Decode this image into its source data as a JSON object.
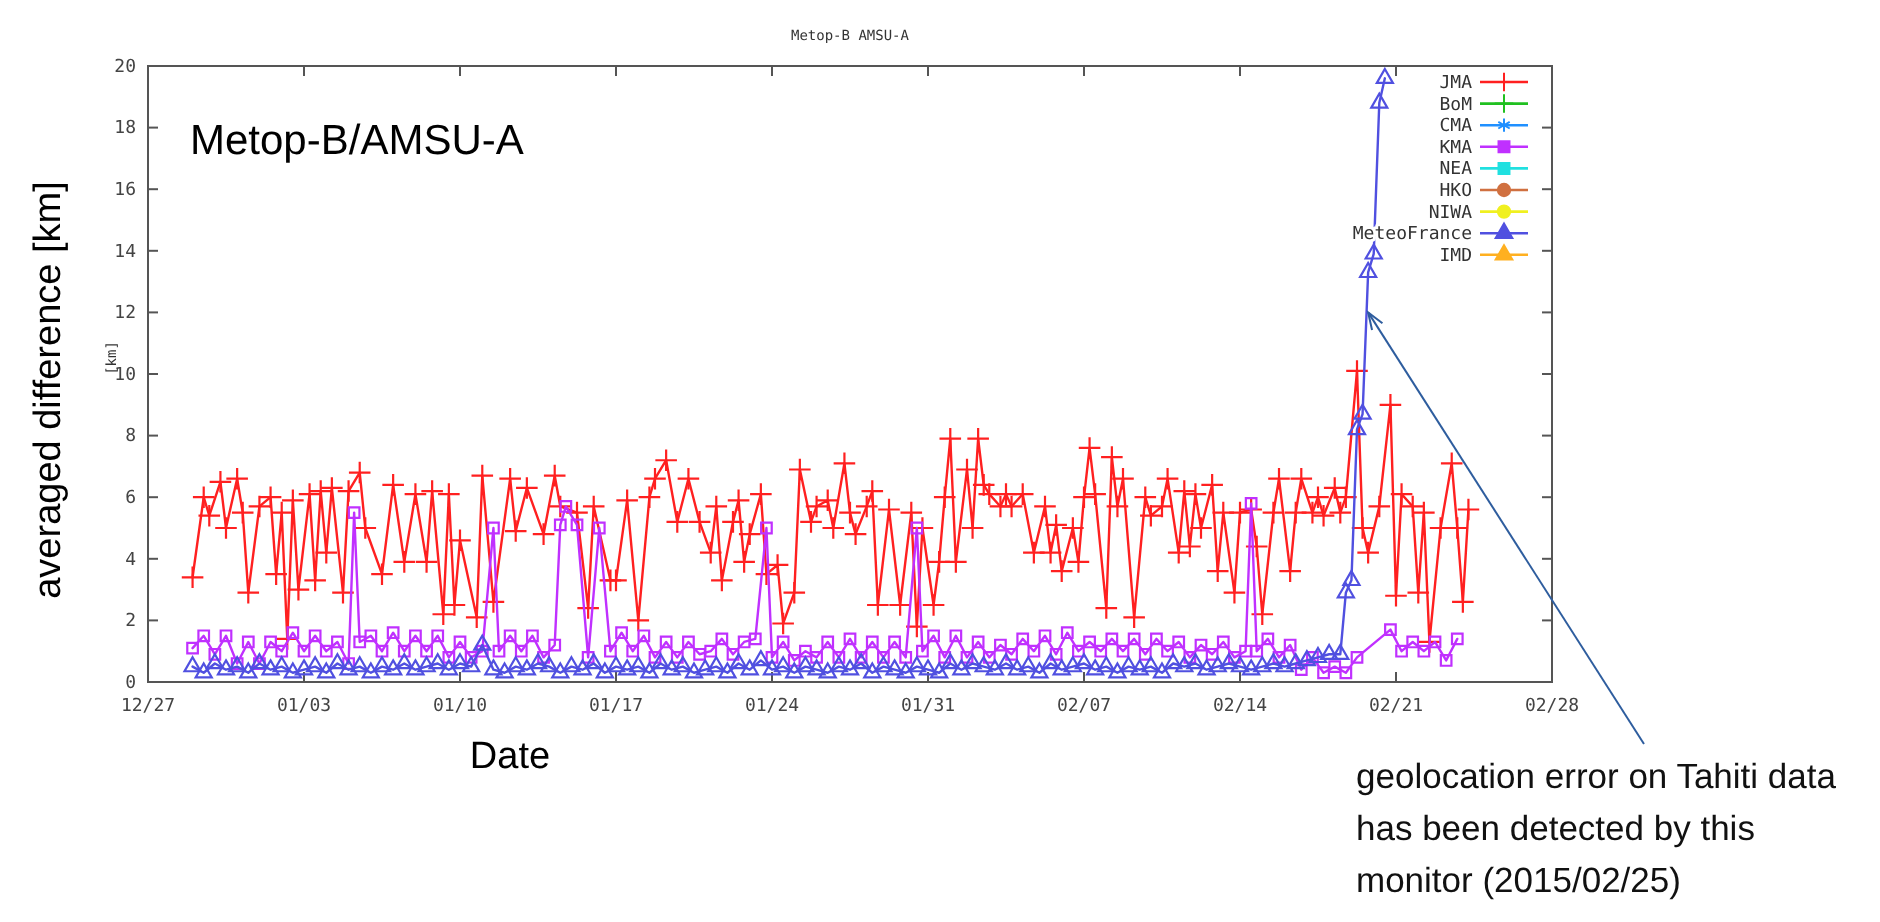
{
  "chart_data": {
    "type": "line",
    "title": "Metop-B AMSU-A",
    "xlabel": "Date",
    "ylabel": "averaged difference [km]",
    "annotations": [
      "Metop-B/AMSU-A",
      "[km]",
      {
        "text": "geolocation error on Tahiti data has been detected by this monitor (2015/02/25)",
        "x": "2015-02-19T18:00",
        "y": 12
      }
    ],
    "xlim": [
      "2014-12-27",
      "2015-02-28"
    ],
    "xticks": [
      {
        "value": "2014-12-27",
        "label": "12/27"
      },
      {
        "value": "2015-01-03",
        "label": "01/03"
      },
      {
        "value": "2015-01-10",
        "label": "01/10"
      },
      {
        "value": "2015-01-17",
        "label": "01/17"
      },
      {
        "value": "2015-01-24",
        "label": "01/24"
      },
      {
        "value": "2015-01-31",
        "label": "01/31"
      },
      {
        "value": "2015-02-07",
        "label": "02/07"
      },
      {
        "value": "2015-02-14",
        "label": "02/14"
      },
      {
        "value": "2015-02-21",
        "label": "02/21"
      },
      {
        "value": "2015-02-28",
        "label": "02/28"
      }
    ],
    "ylim": [
      0,
      20
    ],
    "yticks": [
      0,
      2,
      4,
      6,
      8,
      10,
      12,
      14,
      16,
      18,
      20
    ],
    "grid": false,
    "legend": "top right",
    "series": [
      {
        "name": "JMA",
        "color": "#ff2020",
        "marker": "cross",
        "x": [
          "2014-12-29T00:00",
          "2014-12-29T12:00",
          "2014-12-29T18:00",
          "2014-12-30T06:00",
          "2014-12-30T12:00",
          "2014-12-31T00:00",
          "2014-12-31T06:00",
          "2014-12-31T12:00",
          "2015-01-01T00:00",
          "2015-01-01T12:00",
          "2015-01-01T18:00",
          "2015-01-02T00:00",
          "2015-01-02T06:00",
          "2015-01-02T12:00",
          "2015-01-02T18:00",
          "2015-01-03T06:00",
          "2015-01-03T12:00",
          "2015-01-03T18:00",
          "2015-01-04T00:00",
          "2015-01-04T06:00",
          "2015-01-04T18:00",
          "2015-01-05T00:00",
          "2015-01-05T12:00",
          "2015-01-05T18:00",
          "2015-01-06T12:00",
          "2015-01-07T00:00",
          "2015-01-07T12:00",
          "2015-01-08T00:00",
          "2015-01-08T12:00",
          "2015-01-08T18:00",
          "2015-01-09T06:00",
          "2015-01-09T12:00",
          "2015-01-09T18:00",
          "2015-01-10T00:00",
          "2015-01-10T18:00",
          "2015-01-11T00:00",
          "2015-01-11T12:00",
          "2015-01-12T06:00",
          "2015-01-12T12:00",
          "2015-01-13T00:00",
          "2015-01-13T18:00",
          "2015-01-14T06:00",
          "2015-01-14T12:00",
          "2015-01-15T06:00",
          "2015-01-15T18:00",
          "2015-01-16T00:00",
          "2015-01-16T18:00",
          "2015-01-17T00:00",
          "2015-01-17T12:00",
          "2015-01-18T00:00",
          "2015-01-18T12:00",
          "2015-01-18T18:00",
          "2015-01-19T06:00",
          "2015-01-19T18:00",
          "2015-01-20T06:00",
          "2015-01-20T18:00",
          "2015-01-21T06:00",
          "2015-01-21T12:00",
          "2015-01-21T18:00",
          "2015-01-22T06:00",
          "2015-01-22T12:00",
          "2015-01-22T18:00",
          "2015-01-23T00:00",
          "2015-01-23T12:00",
          "2015-01-23T18:00",
          "2015-01-24T06:00",
          "2015-01-24T12:00",
          "2015-01-25T00:00",
          "2015-01-25T06:00",
          "2015-01-25T18:00",
          "2015-01-26T00:00",
          "2015-01-26T12:00",
          "2015-01-26T18:00",
          "2015-01-27T06:00",
          "2015-01-27T12:00",
          "2015-01-27T18:00",
          "2015-01-28T06:00",
          "2015-01-28T12:00",
          "2015-01-28T18:00",
          "2015-01-29T06:00",
          "2015-01-29T18:00",
          "2015-01-30T06:00",
          "2015-01-30T12:00",
          "2015-01-30T18:00",
          "2015-01-31T06:00",
          "2015-01-31T12:00",
          "2015-01-31T18:00",
          "2015-02-01T00:00",
          "2015-02-01T06:00",
          "2015-02-01T18:00",
          "2015-02-02T00:00",
          "2015-02-02T06:00",
          "2015-02-02T12:00",
          "2015-02-02T18:00",
          "2015-02-03T06:00",
          "2015-02-03T12:00",
          "2015-02-03T18:00",
          "2015-02-04T06:00",
          "2015-02-04T18:00",
          "2015-02-05T06:00",
          "2015-02-05T12:00",
          "2015-02-05T18:00",
          "2015-02-06T00:00",
          "2015-02-06T12:00",
          "2015-02-06T18:00",
          "2015-02-07T00:00",
          "2015-02-07T06:00",
          "2015-02-07T12:00",
          "2015-02-08T00:00",
          "2015-02-08T06:00",
          "2015-02-08T12:00",
          "2015-02-08T18:00",
          "2015-02-09T06:00",
          "2015-02-09T18:00",
          "2015-02-10T00:00",
          "2015-02-10T12:00",
          "2015-02-10T18:00",
          "2015-02-11T06:00",
          "2015-02-11T12:00",
          "2015-02-11T18:00",
          "2015-02-12T00:00",
          "2015-02-12T06:00",
          "2015-02-12T18:00",
          "2015-02-13T00:00",
          "2015-02-13T06:00",
          "2015-02-13T18:00",
          "2015-02-14T00:00",
          "2015-02-14T12:00",
          "2015-02-14T18:00",
          "2015-02-15T00:00",
          "2015-02-15T12:00",
          "2015-02-15T18:00",
          "2015-02-16T06:00",
          "2015-02-16T12:00",
          "2015-02-16T18:00",
          "2015-02-17T06:00",
          "2015-02-17T12:00",
          "2015-02-17T18:00",
          "2015-02-18T06:00",
          "2015-02-18T12:00",
          "2015-02-18T18:00",
          "2015-02-19T06:00",
          "2015-02-19T12:00",
          "2015-02-19T18:00",
          "2015-02-20T06:00",
          "2015-02-20T18:00",
          "2015-02-21T00:00",
          "2015-02-21T06:00",
          "2015-02-21T18:00",
          "2015-02-22T00:00",
          "2015-02-22T06:00",
          "2015-02-22T12:00",
          "2015-02-23T00:00",
          "2015-02-23T12:00",
          "2015-02-23T18:00",
          "2015-02-24T00:00",
          "2015-02-24T06:00"
        ],
        "values": [
          3.4,
          6.0,
          5.4,
          6.5,
          5.0,
          6.6,
          5.5,
          2.9,
          5.7,
          6.0,
          3.5,
          5.5,
          1.4,
          5.9,
          3.0,
          6.1,
          3.3,
          6.2,
          4.2,
          6.3,
          2.9,
          6.2,
          6.8,
          5.0,
          3.5,
          6.4,
          3.9,
          6.1,
          3.9,
          6.2,
          2.2,
          6.1,
          2.5,
          4.6,
          2.1,
          6.7,
          2.6,
          6.6,
          4.9,
          6.3,
          4.8,
          6.7,
          5.7,
          5.5,
          2.4,
          5.7,
          3.3,
          3.3,
          5.9,
          2.0,
          6.0,
          6.6,
          7.2,
          5.2,
          6.6,
          5.2,
          4.2,
          5.7,
          3.3,
          5.2,
          5.9,
          3.9,
          4.8,
          6.1,
          3.5,
          3.8,
          1.9,
          2.9,
          6.9,
          5.2,
          5.7,
          5.9,
          5.0,
          7.1,
          5.5,
          4.8,
          5.7,
          6.2,
          2.5,
          5.6,
          2.5,
          5.5,
          1.8,
          5.0,
          2.5,
          3.9,
          6.0,
          7.9,
          3.9,
          6.9,
          5.0,
          7.9,
          6.4,
          6.1,
          5.7,
          6.1,
          5.7,
          6.1,
          4.2,
          5.7,
          4.2,
          5.1,
          3.6,
          5.0,
          3.9,
          6.0,
          7.6,
          6.1,
          2.4,
          7.3,
          5.7,
          6.6,
          2.1,
          6.0,
          5.4,
          5.7,
          6.6,
          4.2,
          6.2,
          4.4,
          6.1,
          5.0,
          6.4,
          3.6,
          5.5,
          2.9,
          5.5,
          5.6,
          4.4,
          2.2,
          5.5,
          6.6,
          3.6,
          5.5,
          6.6,
          5.5,
          6.0,
          5.4,
          6.3,
          5.5,
          6.0,
          10.1,
          5.0,
          4.2,
          5.7,
          9.0,
          2.8,
          6.1,
          5.7,
          2.9,
          5.5,
          1.3,
          5.0,
          7.1,
          5.0,
          2.6,
          5.6
        ]
      },
      {
        "name": "BoM",
        "color": "#20c020",
        "marker": "cross"
      },
      {
        "name": "CMA",
        "color": "#2090ff",
        "marker": "star"
      },
      {
        "name": "KMA",
        "color": "#c030ff",
        "marker": "square",
        "x": [
          "2014-12-29T00:00",
          "2014-12-29T12:00",
          "2014-12-30T00:00",
          "2014-12-30T12:00",
          "2014-12-31T00:00",
          "2014-12-31T12:00",
          "2015-01-01T00:00",
          "2015-01-01T12:00",
          "2015-01-02T00:00",
          "2015-01-02T12:00",
          "2015-01-03T00:00",
          "2015-01-03T12:00",
          "2015-01-04T00:00",
          "2015-01-04T12:00",
          "2015-01-05T00:00",
          "2015-01-05T06:00",
          "2015-01-05T12:00",
          "2015-01-06T00:00",
          "2015-01-06T12:00",
          "2015-01-07T00:00",
          "2015-01-07T12:00",
          "2015-01-08T00:00",
          "2015-01-08T12:00",
          "2015-01-09T00:00",
          "2015-01-09T12:00",
          "2015-01-10T00:00",
          "2015-01-10T12:00",
          "2015-01-11T00:00",
          "2015-01-11T12:00",
          "2015-01-11T18:00",
          "2015-01-12T06:00",
          "2015-01-12T18:00",
          "2015-01-13T06:00",
          "2015-01-13T18:00",
          "2015-01-14T06:00",
          "2015-01-14T12:00",
          "2015-01-14T18:00",
          "2015-01-15T06:00",
          "2015-01-15T18:00",
          "2015-01-16T06:00",
          "2015-01-16T18:00",
          "2015-01-17T06:00",
          "2015-01-17T18:00",
          "2015-01-18T06:00",
          "2015-01-18T18:00",
          "2015-01-19T06:00",
          "2015-01-19T18:00",
          "2015-01-20T06:00",
          "2015-01-20T18:00",
          "2015-01-21T06:00",
          "2015-01-21T18:00",
          "2015-01-22T06:00",
          "2015-01-22T18:00",
          "2015-01-23T06:00",
          "2015-01-23T18:00",
          "2015-01-24T00:00",
          "2015-01-24T12:00",
          "2015-01-25T00:00",
          "2015-01-25T12:00",
          "2015-01-26T00:00",
          "2015-01-26T12:00",
          "2015-01-27T00:00",
          "2015-01-27T12:00",
          "2015-01-28T00:00",
          "2015-01-28T12:00",
          "2015-01-29T00:00",
          "2015-01-29T12:00",
          "2015-01-30T00:00",
          "2015-01-30T12:00",
          "2015-01-30T18:00",
          "2015-01-31T06:00",
          "2015-01-31T18:00",
          "2015-02-01T06:00",
          "2015-02-01T18:00",
          "2015-02-02T06:00",
          "2015-02-02T18:00",
          "2015-02-03T06:00",
          "2015-02-03T18:00",
          "2015-02-04T06:00",
          "2015-02-04T18:00",
          "2015-02-05T06:00",
          "2015-02-05T18:00",
          "2015-02-06T06:00",
          "2015-02-06T18:00",
          "2015-02-07T06:00",
          "2015-02-07T18:00",
          "2015-02-08T06:00",
          "2015-02-08T18:00",
          "2015-02-09T06:00",
          "2015-02-09T18:00",
          "2015-02-10T06:00",
          "2015-02-10T18:00",
          "2015-02-11T06:00",
          "2015-02-11T18:00",
          "2015-02-12T06:00",
          "2015-02-12T18:00",
          "2015-02-13T06:00",
          "2015-02-13T18:00",
          "2015-02-14T06:00",
          "2015-02-14T12:00",
          "2015-02-14T18:00",
          "2015-02-15T06:00",
          "2015-02-15T18:00",
          "2015-02-16T06:00",
          "2015-02-16T18:00",
          "2015-02-17T06:00",
          "2015-02-17T18:00",
          "2015-02-18T06:00",
          "2015-02-18T18:00",
          "2015-02-19T06:00",
          "2015-02-20T18:00",
          "2015-02-21T06:00",
          "2015-02-21T18:00",
          "2015-02-22T06:00",
          "2015-02-22T18:00",
          "2015-02-23T06:00",
          "2015-02-23T18:00"
        ],
        "values": [
          1.1,
          1.5,
          0.9,
          1.5,
          0.6,
          1.3,
          0.6,
          1.3,
          1.0,
          1.6,
          1.0,
          1.5,
          1.0,
          1.3,
          0.6,
          5.5,
          1.3,
          1.5,
          1.0,
          1.6,
          1.0,
          1.5,
          1.0,
          1.5,
          0.8,
          1.3,
          0.8,
          1.0,
          5.0,
          1.0,
          1.5,
          1.0,
          1.5,
          0.8,
          1.2,
          5.1,
          5.7,
          5.1,
          0.8,
          5.0,
          1.0,
          1.6,
          1.0,
          1.5,
          0.8,
          1.3,
          0.8,
          1.3,
          0.9,
          1.0,
          1.4,
          0.9,
          1.3,
          1.4,
          5.0,
          0.8,
          1.3,
          0.7,
          1.0,
          0.8,
          1.3,
          0.8,
          1.4,
          0.8,
          1.3,
          0.8,
          1.3,
          0.8,
          5.0,
          1.0,
          1.5,
          0.8,
          1.5,
          0.8,
          1.3,
          0.8,
          1.2,
          0.9,
          1.4,
          1.0,
          1.5,
          0.9,
          1.6,
          1.0,
          1.3,
          1.0,
          1.4,
          1.0,
          1.4,
          0.9,
          1.4,
          1.0,
          1.3,
          0.8,
          1.2,
          0.9,
          1.3,
          0.8,
          1.0,
          5.8,
          1.0,
          1.4,
          0.8,
          1.2,
          0.4,
          0.8,
          0.3,
          0.5,
          0.3,
          0.8,
          1.7,
          1.0,
          1.3,
          1.0,
          1.3,
          0.7,
          1.4
        ]
      },
      {
        "name": "NEA",
        "color": "#20e0e0",
        "marker": "square"
      },
      {
        "name": "HKO",
        "color": "#d07040",
        "marker": "circle"
      },
      {
        "name": "NIWA",
        "color": "#f0f020",
        "marker": "circle"
      },
      {
        "name": "MeteoFrance",
        "color": "#5050e0",
        "marker": "triangle",
        "x": [
          "2014-12-29T00:00",
          "2014-12-29T12:00",
          "2014-12-30T00:00",
          "2014-12-30T12:00",
          "2014-12-31T00:00",
          "2014-12-31T12:00",
          "2015-01-01T00:00",
          "2015-01-01T12:00",
          "2015-01-02T00:00",
          "2015-01-02T12:00",
          "2015-01-03T00:00",
          "2015-01-03T12:00",
          "2015-01-04T00:00",
          "2015-01-04T12:00",
          "2015-01-05T00:00",
          "2015-01-05T12:00",
          "2015-01-06T00:00",
          "2015-01-06T12:00",
          "2015-01-07T00:00",
          "2015-01-07T12:00",
          "2015-01-08T00:00",
          "2015-01-08T12:00",
          "2015-01-09T00:00",
          "2015-01-09T12:00",
          "2015-01-10T00:00",
          "2015-01-10T12:00",
          "2015-01-11T00:00",
          "2015-01-11T12:00",
          "2015-01-12T00:00",
          "2015-01-12T12:00",
          "2015-01-13T00:00",
          "2015-01-13T12:00",
          "2015-01-14T00:00",
          "2015-01-14T12:00",
          "2015-01-15T00:00",
          "2015-01-15T12:00",
          "2015-01-16T00:00",
          "2015-01-16T12:00",
          "2015-01-17T00:00",
          "2015-01-17T12:00",
          "2015-01-18T00:00",
          "2015-01-18T12:00",
          "2015-01-19T00:00",
          "2015-01-19T12:00",
          "2015-01-20T00:00",
          "2015-01-20T12:00",
          "2015-01-21T00:00",
          "2015-01-21T12:00",
          "2015-01-22T00:00",
          "2015-01-22T12:00",
          "2015-01-23T00:00",
          "2015-01-23T12:00",
          "2015-01-24T00:00",
          "2015-01-24T12:00",
          "2015-01-25T00:00",
          "2015-01-25T12:00",
          "2015-01-26T00:00",
          "2015-01-26T12:00",
          "2015-01-27T00:00",
          "2015-01-27T12:00",
          "2015-01-28T00:00",
          "2015-01-28T12:00",
          "2015-01-29T00:00",
          "2015-01-29T12:00",
          "2015-01-30T00:00",
          "2015-01-30T12:00",
          "2015-01-31T00:00",
          "2015-01-31T12:00",
          "2015-02-01T00:00",
          "2015-02-01T12:00",
          "2015-02-02T00:00",
          "2015-02-02T12:00",
          "2015-02-03T00:00",
          "2015-02-03T12:00",
          "2015-02-04T00:00",
          "2015-02-04T12:00",
          "2015-02-05T00:00",
          "2015-02-05T12:00",
          "2015-02-06T00:00",
          "2015-02-06T12:00",
          "2015-02-07T00:00",
          "2015-02-07T12:00",
          "2015-02-08T00:00",
          "2015-02-08T12:00",
          "2015-02-09T00:00",
          "2015-02-09T12:00",
          "2015-02-10T00:00",
          "2015-02-10T12:00",
          "2015-02-11T00:00",
          "2015-02-11T12:00",
          "2015-02-12T00:00",
          "2015-02-12T12:00",
          "2015-02-13T00:00",
          "2015-02-13T12:00",
          "2015-02-14T00:00",
          "2015-02-14T12:00",
          "2015-02-15T00:00",
          "2015-02-15T12:00",
          "2015-02-16T00:00",
          "2015-02-16T12:00",
          "2015-02-17T00:00",
          "2015-02-17T12:00",
          "2015-02-18T00:00",
          "2015-02-18T12:00",
          "2015-02-18T18:00",
          "2015-02-19T00:00",
          "2015-02-19T06:00",
          "2015-02-19T12:00",
          "2015-02-19T18:00",
          "2015-02-20T00:00",
          "2015-02-20T06:00",
          "2015-02-20T12:00"
        ],
        "values": [
          0.5,
          0.3,
          0.6,
          0.4,
          0.5,
          0.3,
          0.6,
          0.4,
          0.5,
          0.3,
          0.4,
          0.5,
          0.3,
          0.6,
          0.4,
          0.5,
          0.3,
          0.5,
          0.4,
          0.6,
          0.4,
          0.5,
          0.6,
          0.4,
          0.6,
          0.5,
          1.2,
          0.4,
          0.3,
          0.5,
          0.4,
          0.6,
          0.5,
          0.3,
          0.5,
          0.4,
          0.6,
          0.3,
          0.5,
          0.4,
          0.5,
          0.3,
          0.6,
          0.4,
          0.5,
          0.3,
          0.4,
          0.5,
          0.3,
          0.6,
          0.4,
          0.7,
          0.4,
          0.5,
          0.3,
          0.5,
          0.4,
          0.3,
          0.5,
          0.4,
          0.6,
          0.3,
          0.5,
          0.4,
          0.3,
          0.5,
          0.4,
          0.3,
          0.6,
          0.4,
          0.6,
          0.5,
          0.4,
          0.6,
          0.4,
          0.5,
          0.3,
          0.6,
          0.4,
          0.5,
          0.6,
          0.4,
          0.5,
          0.3,
          0.5,
          0.4,
          0.5,
          0.3,
          0.6,
          0.5,
          0.6,
          0.4,
          0.5,
          0.6,
          0.5,
          0.4,
          0.5,
          0.6,
          0.5,
          0.6,
          0.7,
          0.8,
          0.9,
          0.9,
          2.9,
          3.3,
          8.2,
          8.7,
          13.3,
          13.9,
          18.8,
          19.6
        ]
      },
      {
        "name": "IMD",
        "color": "#ffb020",
        "marker": "triangle"
      }
    ]
  }
}
